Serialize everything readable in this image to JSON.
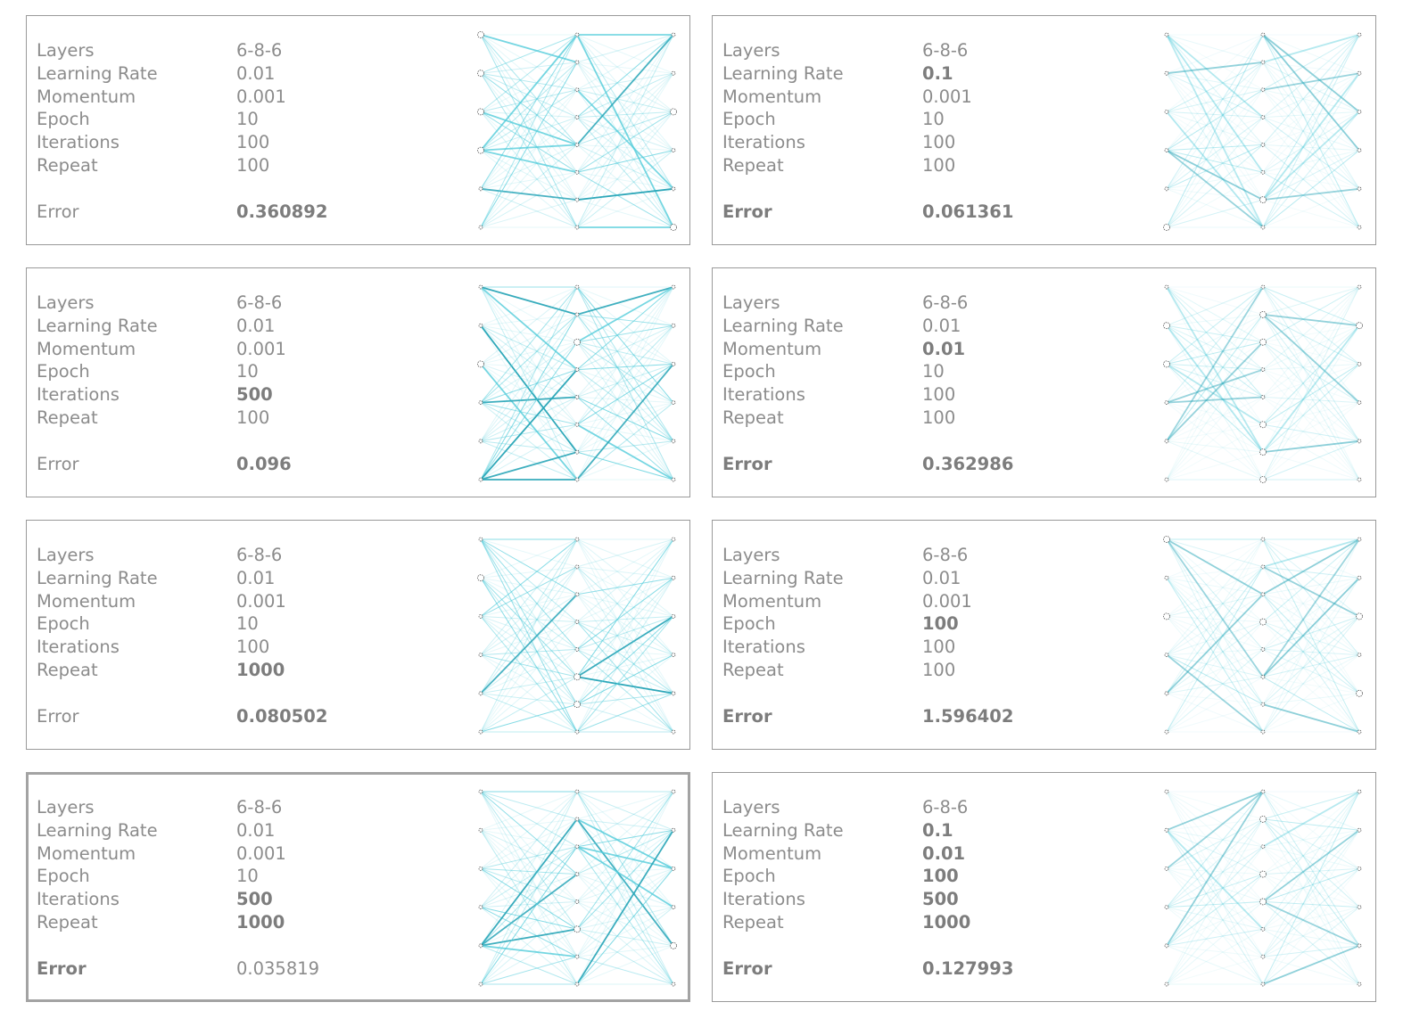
{
  "panels": [
    {
      "selected": false,
      "rows": [
        {
          "label": "Layers",
          "value": "6-8-6",
          "bold": false
        },
        {
          "label": "Learning Rate",
          "value": "0.01",
          "bold": false
        },
        {
          "label": "Momentum",
          "value": "0.001",
          "bold": false
        },
        {
          "label": "Epoch",
          "value": "10",
          "bold": false
        },
        {
          "label": "Iterations",
          "value": "100",
          "bold": false
        },
        {
          "label": "Repeat",
          "value": "100",
          "bold": false
        }
      ],
      "error": {
        "label": "Error",
        "value": "0.360892",
        "label_bold": false,
        "value_bold": true
      }
    },
    {
      "selected": false,
      "rows": [
        {
          "label": "Layers",
          "value": "6-8-6",
          "bold": false
        },
        {
          "label": "Learning Rate",
          "value": "0.1",
          "bold": true
        },
        {
          "label": "Momentum",
          "value": "0.001",
          "bold": false
        },
        {
          "label": "Epoch",
          "value": "10",
          "bold": false
        },
        {
          "label": "Iterations",
          "value": "100",
          "bold": false
        },
        {
          "label": "Repeat",
          "value": "100",
          "bold": false
        }
      ],
      "error": {
        "label": "Error",
        "value": "0.061361",
        "label_bold": true,
        "value_bold": true
      }
    },
    {
      "selected": false,
      "rows": [
        {
          "label": "Layers",
          "value": "6-8-6",
          "bold": false
        },
        {
          "label": "Learning Rate",
          "value": "0.01",
          "bold": false
        },
        {
          "label": "Momentum",
          "value": "0.001",
          "bold": false
        },
        {
          "label": "Epoch",
          "value": "10",
          "bold": false
        },
        {
          "label": "Iterations",
          "value": "500",
          "bold": true
        },
        {
          "label": "Repeat",
          "value": "100",
          "bold": false
        }
      ],
      "error": {
        "label": "Error",
        "value": "0.096",
        "label_bold": false,
        "value_bold": true
      }
    },
    {
      "selected": false,
      "rows": [
        {
          "label": "Layers",
          "value": "6-8-6",
          "bold": false
        },
        {
          "label": "Learning Rate",
          "value": "0.01",
          "bold": false
        },
        {
          "label": "Momentum",
          "value": "0.01",
          "bold": true
        },
        {
          "label": "Epoch",
          "value": "10",
          "bold": false
        },
        {
          "label": "Iterations",
          "value": "100",
          "bold": false
        },
        {
          "label": "Repeat",
          "value": "100",
          "bold": false
        }
      ],
      "error": {
        "label": "Error",
        "value": "0.362986",
        "label_bold": true,
        "value_bold": true
      }
    },
    {
      "selected": false,
      "rows": [
        {
          "label": "Layers",
          "value": "6-8-6",
          "bold": false
        },
        {
          "label": "Learning Rate",
          "value": "0.01",
          "bold": false
        },
        {
          "label": "Momentum",
          "value": "0.001",
          "bold": false
        },
        {
          "label": "Epoch",
          "value": "10",
          "bold": false
        },
        {
          "label": "Iterations",
          "value": "100",
          "bold": false
        },
        {
          "label": "Repeat",
          "value": "1000",
          "bold": true
        }
      ],
      "error": {
        "label": "Error",
        "value": "0.080502",
        "label_bold": false,
        "value_bold": true
      }
    },
    {
      "selected": false,
      "rows": [
        {
          "label": "Layers",
          "value": "6-8-6",
          "bold": false
        },
        {
          "label": "Learning Rate",
          "value": "0.01",
          "bold": false
        },
        {
          "label": "Momentum",
          "value": "0.001",
          "bold": false
        },
        {
          "label": "Epoch",
          "value": "100",
          "bold": true
        },
        {
          "label": "Iterations",
          "value": "100",
          "bold": false
        },
        {
          "label": "Repeat",
          "value": "100",
          "bold": false
        }
      ],
      "error": {
        "label": "Error",
        "value": "1.596402",
        "label_bold": true,
        "value_bold": true
      }
    },
    {
      "selected": true,
      "rows": [
        {
          "label": "Layers",
          "value": "6-8-6",
          "bold": false
        },
        {
          "label": "Learning Rate",
          "value": "0.01",
          "bold": false
        },
        {
          "label": "Momentum",
          "value": "0.001",
          "bold": false
        },
        {
          "label": "Epoch",
          "value": "10",
          "bold": false
        },
        {
          "label": "Iterations",
          "value": "500",
          "bold": true
        },
        {
          "label": "Repeat",
          "value": "1000",
          "bold": true
        }
      ],
      "error": {
        "label": "Error",
        "value": "0.035819",
        "label_bold": true,
        "value_bold": false
      }
    },
    {
      "selected": false,
      "rows": [
        {
          "label": "Layers",
          "value": "6-8-6",
          "bold": false
        },
        {
          "label": "Learning Rate",
          "value": "0.1",
          "bold": true
        },
        {
          "label": "Momentum",
          "value": "0.01",
          "bold": true
        },
        {
          "label": "Epoch",
          "value": "100",
          "bold": true
        },
        {
          "label": "Iterations",
          "value": "500",
          "bold": true
        },
        {
          "label": "Repeat",
          "value": "1000",
          "bold": true
        }
      ],
      "error": {
        "label": "Error",
        "value": "0.127993",
        "label_bold": true,
        "value_bold": true
      }
    }
  ]
}
